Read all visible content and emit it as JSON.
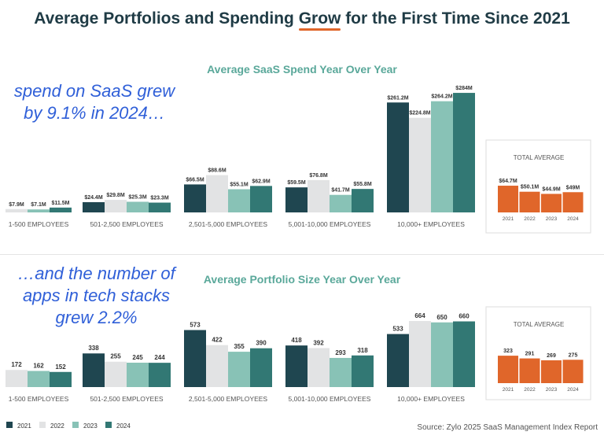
{
  "title_pre": "Average Portfolios and Spending ",
  "title_grow": "Grow",
  "title_post": " for the First Time Since 2021",
  "notes": {
    "top": "spend on SaaS grew by 9.1% in 2024…",
    "bottom": "…and the number of apps in tech stacks grew 2.2%"
  },
  "source": "Source: Zylo 2025 SaaS Management Index Report",
  "colors": {
    "2021": "#1f4650",
    "2022": "#e2e3e4",
    "2023": "#88c2b6",
    "2024": "#327874",
    "total": "#e0662a"
  },
  "chart_data": [
    {
      "type": "bar",
      "title": "Average SaaS Spend Year Over Year",
      "unit": "$M",
      "years": [
        "2021",
        "2022",
        "2023",
        "2024"
      ],
      "categories": [
        "1-500 EMPLOYEES",
        "501-2,500 EMPLOYEES",
        "2,501-5,000 EMPLOYEES",
        "5,001-10,000 EMPLOYEES",
        "10,000+ EMPLOYEES"
      ],
      "values": [
        [
          null,
          7.9,
          7.1,
          11.5
        ],
        [
          24.4,
          29.8,
          25.3,
          23.3
        ],
        [
          66.5,
          88.6,
          55.1,
          62.9
        ],
        [
          59.5,
          76.8,
          41.7,
          55.8
        ],
        [
          261.2,
          224.8,
          264.2,
          284
        ]
      ],
      "labels": [
        [
          null,
          "$7.9M",
          "$7.1M",
          "$11.5M"
        ],
        [
          "$24.4M",
          "$29.8M",
          "$25.3M",
          "$23.3M"
        ],
        [
          "$66.5M",
          "$88.6M",
          "$55.1M",
          "$62.9M"
        ],
        [
          "$59.5M",
          "$76.8M",
          "$41.7M",
          "$55.8M"
        ],
        [
          "$261.2M",
          "$224.8M",
          "$264.2M",
          "$284M"
        ]
      ],
      "total": {
        "title": "TOTAL AVERAGE",
        "values": [
          64.7,
          50.1,
          44.9,
          49
        ],
        "labels": [
          "$64.7M",
          "$50.1M",
          "$44.9M",
          "$49M"
        ]
      }
    },
    {
      "type": "bar",
      "title": "Average Portfolio Size Year Over Year",
      "years": [
        "2021",
        "2022",
        "2023",
        "2024"
      ],
      "categories": [
        "1-500 EMPLOYEES",
        "501-2,500 EMPLOYEES",
        "2,501-5,000 EMPLOYEES",
        "5,001-10,000 EMPLOYEES",
        "10,000+ EMPLOYEES"
      ],
      "values": [
        [
          null,
          172,
          162,
          152
        ],
        [
          338,
          255,
          245,
          244
        ],
        [
          573,
          422,
          355,
          390
        ],
        [
          418,
          392,
          293,
          318
        ],
        [
          533,
          664,
          650,
          660
        ]
      ],
      "labels": [
        [
          null,
          "172",
          "162",
          "152"
        ],
        [
          "338",
          "255",
          "245",
          "244"
        ],
        [
          "573",
          "422",
          "355",
          "390"
        ],
        [
          "418",
          "392",
          "293",
          "318"
        ],
        [
          "533",
          "664",
          "650",
          "660"
        ]
      ],
      "total": {
        "title": "TOTAL AVERAGE",
        "values": [
          323,
          291,
          269,
          275
        ],
        "labels": [
          "323",
          "291",
          "269",
          "275"
        ]
      }
    }
  ],
  "legend": [
    "2021",
    "2022",
    "2023",
    "2024"
  ]
}
